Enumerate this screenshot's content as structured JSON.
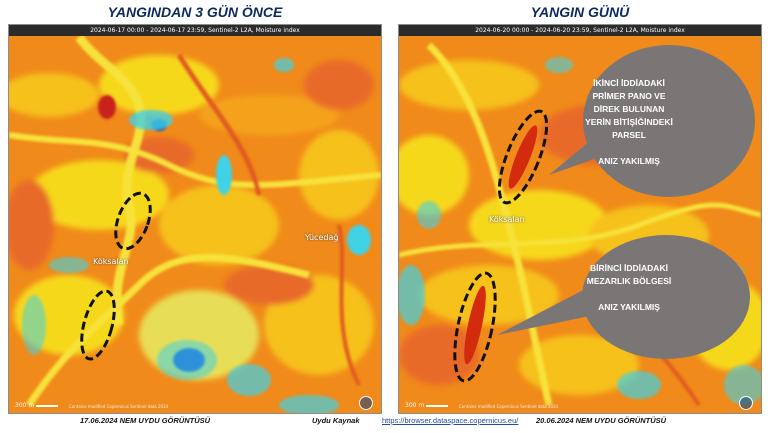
{
  "left_panel": {
    "title": "YANGINDAN 3 GÜN ÖNCE",
    "header": "2024-06-17 00:00 - 2024-06-17 23:59, Sentinel-2 L2A, Moisture index",
    "places": [
      "Yücedağ",
      "Köksalan"
    ],
    "scale": "300 m",
    "credit": "Contains modified Copernicus Sentinel data 2024"
  },
  "right_panel": {
    "title": "YANGIN GÜNÜ",
    "header": "2024-06-20 00:00 - 2024-06-20 23:59, Sentinel-2 L2A, Moisture index",
    "places": [
      "Köksalan"
    ],
    "scale": "300 m",
    "credit": "Contains modified Copernicus Sentinel data 2024"
  },
  "callouts": [
    {
      "lines": [
        "İKİNCİ  İDDİADAKİ",
        "PRİMER PANO VE",
        "DİREK BULUNAN",
        "YERİN BİTİŞİĞİNDEKİ",
        "PARSEL"
      ],
      "note": "ANIZ YAKILMIŞ"
    },
    {
      "lines": [
        "BİRİNCİ  İDDİADAKİ",
        "MEZARLIK BÖLGESİ"
      ],
      "note": "ANIZ YAKILMIŞ"
    }
  ],
  "footer": {
    "left": "17.06.2024  NEM  UYDU GÖRÜNTÜSÜ",
    "source": "Uydu Kaynak",
    "url": "https://browser.dataspace.copernicus.eu/",
    "right": "20.06.2024  NEM  UYDU GÖRÜNTÜSÜ"
  },
  "colors": {
    "map_orange": "#f08a1a",
    "map_yellow": "#f7dd1c",
    "map_cyan": "#3fd2e6",
    "map_red": "#d22b0e",
    "callout_gray": "#7b7676",
    "title_navy": "#0b2a5e"
  }
}
